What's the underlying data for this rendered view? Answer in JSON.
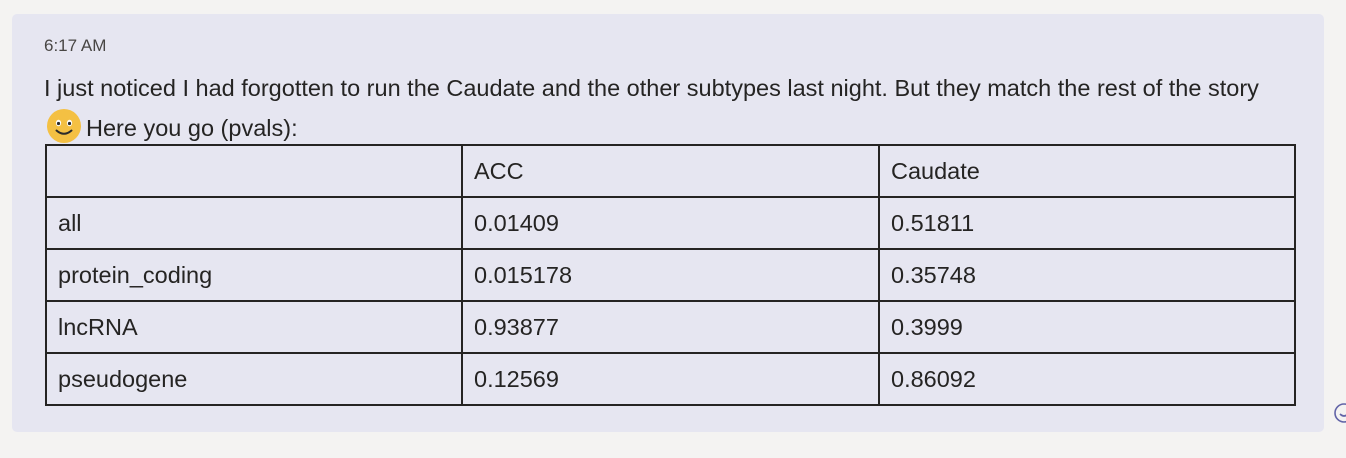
{
  "message": {
    "timestamp": "6:17 AM",
    "text_part1": "I just noticed I had forgotten to run the Caudate and the other subtypes last night. But they match the rest of the story",
    "emoji": "smile-emoji-icon",
    "text_part2": "Here you go (pvals):"
  },
  "table": {
    "headers": [
      "",
      "ACC",
      "Caudate"
    ],
    "rows": [
      [
        "all",
        "0.01409",
        "0.51811"
      ],
      [
        "protein_coding",
        "0.015178",
        "0.35748"
      ],
      [
        "lncRNA",
        "0.93877",
        "0.3999"
      ],
      [
        "pseudogene",
        "0.12569",
        "0.86092"
      ]
    ]
  },
  "colors": {
    "bubble": "#e6e6f1",
    "background": "#f4f3f2",
    "accent": "#6264a7"
  },
  "reaction_icon": "reaction-icon"
}
